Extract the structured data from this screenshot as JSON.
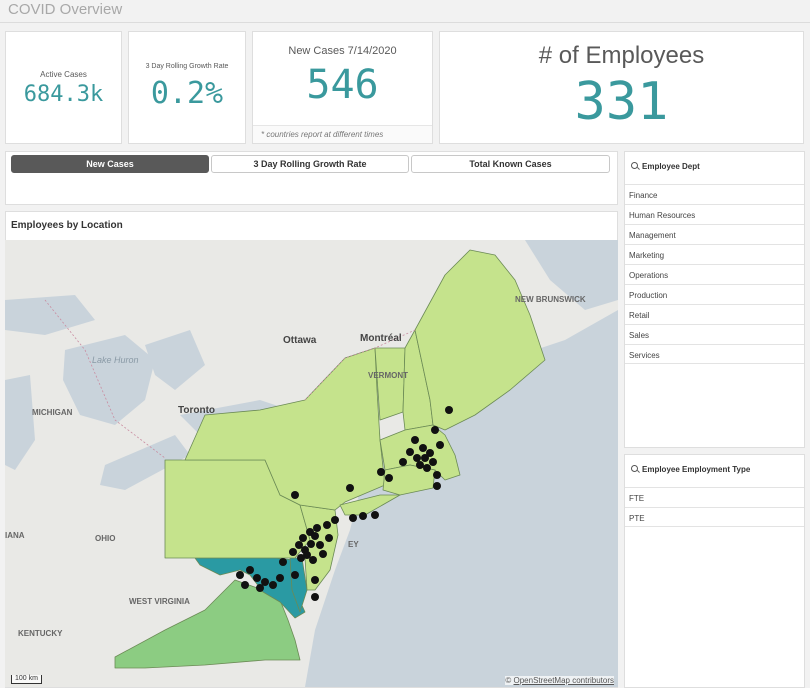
{
  "app": {
    "title": "COVID Overview"
  },
  "kpis": {
    "active_cases": {
      "label": "Active Cases",
      "value": "684.3k"
    },
    "growth_rate": {
      "label": "3 Day Rolling Growth Rate",
      "value": "0.2%"
    },
    "new_cases": {
      "label": "New Cases 7/14/2020",
      "value": "546",
      "footnote": "* countries report at different times"
    },
    "employees": {
      "label": "# of Employees",
      "value": "331"
    }
  },
  "buttons": [
    {
      "label": "New Cases",
      "active": true
    },
    {
      "label": "3 Day Rolling Growth Rate",
      "active": false
    },
    {
      "label": "Total Known Cases",
      "active": false
    }
  ],
  "map": {
    "title": "Employees by Location",
    "labels": {
      "new_brunswick": "NEW BRUNSWICK",
      "ottawa": "Ottawa",
      "montreal": "Montréal",
      "lake_huron": "Lake Huron",
      "vermont": "VERMONT",
      "michigan": "MICHIGAN",
      "toronto": "Toronto",
      "ohio": "OHIO",
      "west_virginia": "WEST VIRGINIA",
      "kentucky": "KENTUCKY",
      "indiana": "IANA",
      "jersey": "EY"
    },
    "scale": "100 km",
    "attribution_prefix": "© ",
    "attribution_link": "OpenStreetMap contributors",
    "colors": {
      "light": "#c5e38c",
      "mid": "#8ccc82",
      "teal": "#2a9aa3",
      "dot": "#111111",
      "water": "#c9d3db",
      "land": "#ebebe8"
    }
  },
  "filters": {
    "dept": {
      "title": "Employee Dept",
      "items": [
        "Finance",
        "Human Resources",
        "Management",
        "Marketing",
        "Operations",
        "Production",
        "Retail",
        "Sales",
        "Services"
      ]
    },
    "employment_type": {
      "title": "Employee Employment Type",
      "items": [
        "FTE",
        "PTE"
      ]
    }
  }
}
